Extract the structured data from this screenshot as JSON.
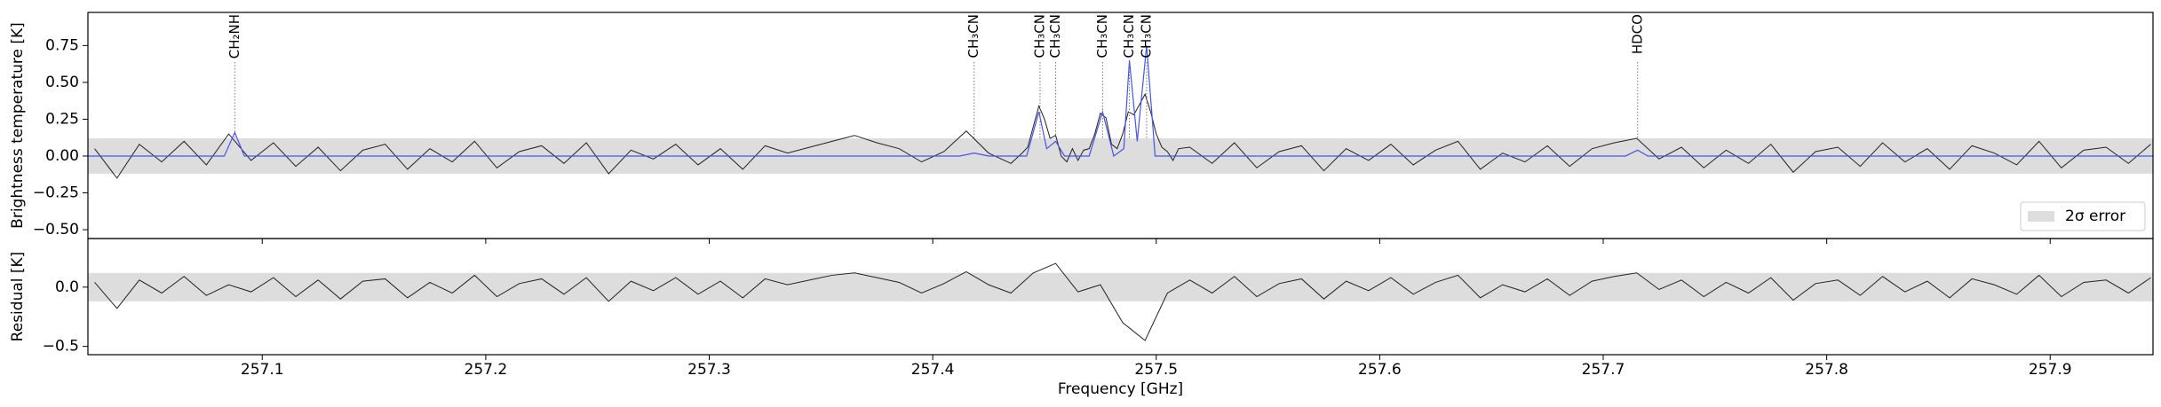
{
  "chart_data": [
    {
      "type": "line",
      "ylabel": "Brightness temperature [K]",
      "xlim": [
        257.022,
        257.946
      ],
      "ylim": [
        -0.56,
        0.975
      ],
      "yticks": [
        {
          "value": -0.5,
          "label": "−0.50"
        },
        {
          "value": -0.25,
          "label": "−0.25"
        },
        {
          "value": 0,
          "label": "0.00"
        },
        {
          "value": 0.25,
          "label": "0.25"
        },
        {
          "value": 0.5,
          "label": "0.50"
        },
        {
          "value": 0.75,
          "label": "0.75"
        }
      ],
      "error_band": {
        "name": "2σ error",
        "lower": -0.12,
        "upper": 0.12,
        "color": "#dddddd"
      },
      "legend": "lower right",
      "series": [
        {
          "color": "#222222",
          "x": [
            257.025,
            257.035,
            257.045,
            257.055,
            257.065,
            257.075,
            257.085,
            257.095,
            257.105,
            257.115,
            257.125,
            257.135,
            257.145,
            257.155,
            257.165,
            257.175,
            257.185,
            257.195,
            257.205,
            257.215,
            257.225,
            257.235,
            257.245,
            257.255,
            257.265,
            257.275,
            257.285,
            257.295,
            257.305,
            257.315,
            257.325,
            257.335,
            257.345,
            257.355,
            257.365,
            257.375,
            257.385,
            257.395,
            257.405,
            257.415,
            257.425,
            257.435,
            257.44,
            257.4425,
            257.445,
            257.4475,
            257.45,
            257.4525,
            257.455,
            257.4575,
            257.46,
            257.4625,
            257.465,
            257.4675,
            257.47,
            257.4725,
            257.475,
            257.4775,
            257.48,
            257.4825,
            257.485,
            257.4875,
            257.49,
            257.4925,
            257.495,
            257.4975,
            257.5,
            257.5025,
            257.505,
            257.5075,
            257.51,
            257.515,
            257.525,
            257.535,
            257.545,
            257.555,
            257.565,
            257.575,
            257.585,
            257.595,
            257.605,
            257.615,
            257.625,
            257.635,
            257.645,
            257.655,
            257.665,
            257.675,
            257.685,
            257.695,
            257.705,
            257.715,
            257.725,
            257.735,
            257.745,
            257.755,
            257.765,
            257.775,
            257.785,
            257.795,
            257.805,
            257.815,
            257.825,
            257.835,
            257.845,
            257.855,
            257.865,
            257.875,
            257.885,
            257.895,
            257.905,
            257.915,
            257.925,
            257.935,
            257.945
          ],
          "values": [
            0.05,
            -0.15,
            0.08,
            -0.04,
            0.1,
            -0.06,
            0.15,
            -0.03,
            0.09,
            -0.07,
            0.06,
            -0.1,
            0.04,
            0.08,
            -0.09,
            0.05,
            -0.04,
            0.1,
            -0.08,
            0.03,
            0.07,
            -0.05,
            0.09,
            -0.12,
            0.04,
            -0.02,
            0.08,
            -0.06,
            0.05,
            -0.09,
            0.07,
            0.02,
            0.06,
            0.1,
            0.14,
            0.09,
            0.05,
            -0.04,
            0.03,
            0.17,
            0.02,
            -0.05,
            0.02,
            0.06,
            0.2,
            0.34,
            0.25,
            0.12,
            0.14,
            0.0,
            -0.04,
            0.05,
            -0.03,
            0.04,
            0.05,
            0.15,
            0.29,
            0.26,
            0.08,
            0.05,
            0.15,
            0.3,
            0.28,
            0.35,
            0.42,
            0.3,
            0.15,
            0.06,
            0.03,
            -0.03,
            0.05,
            0.06,
            -0.05,
            0.09,
            -0.08,
            0.03,
            0.07,
            -0.1,
            0.05,
            -0.03,
            0.08,
            -0.06,
            0.04,
            0.1,
            -0.09,
            0.02,
            -0.04,
            0.07,
            -0.07,
            0.05,
            0.09,
            0.12,
            -0.02,
            0.06,
            -0.08,
            0.04,
            -0.05,
            0.08,
            -0.11,
            0.03,
            0.06,
            -0.07,
            0.09,
            -0.04,
            0.05,
            -0.09,
            0.07,
            0.02,
            -0.06,
            0.1,
            -0.08,
            0.04,
            0.06,
            -0.05,
            0.08
          ]
        },
        {
          "color": "#4455ee",
          "x": [
            257.022,
            257.083,
            257.0877,
            257.092,
            257.412,
            257.4185,
            257.425,
            257.442,
            257.4475,
            257.451,
            257.455,
            257.459,
            257.47,
            257.476,
            257.481,
            257.4855,
            257.488,
            257.4915,
            257.4957,
            257.4995,
            257.71,
            257.7154,
            257.72,
            257.946
          ],
          "values": [
            0,
            0,
            0.16,
            0,
            0,
            0.02,
            0,
            0,
            0.3,
            0.05,
            0.1,
            0,
            0,
            0.3,
            0,
            0.05,
            0.65,
            0.1,
            0.75,
            0,
            0,
            0.04,
            0,
            0
          ]
        }
      ],
      "annotations": [
        {
          "label": "CH₂NH",
          "x": 257.0877
        },
        {
          "label": "CH₃CN",
          "x": 257.4185
        },
        {
          "label": "CH₃CN",
          "x": 257.448
        },
        {
          "label": "CH₃CN",
          "x": 257.455
        },
        {
          "label": "CH₃CN",
          "x": 257.476
        },
        {
          "label": "CH₃CN",
          "x": 257.488
        },
        {
          "label": "CH₃CN",
          "x": 257.4957
        },
        {
          "label": "HDCO",
          "x": 257.7154
        }
      ]
    },
    {
      "type": "line",
      "ylabel": "Residual [K]",
      "xlabel": "Frequency [GHz]",
      "xlim": [
        257.022,
        257.946
      ],
      "xticks": [
        257.1,
        257.2,
        257.3,
        257.4,
        257.5,
        257.6,
        257.7,
        257.8,
        257.9
      ],
      "ylim": [
        -0.57,
        0.41
      ],
      "yticks": [
        {
          "value": -0.5,
          "label": "−0.5"
        },
        {
          "value": 0,
          "label": "0.0"
        }
      ],
      "error_band": {
        "lower": -0.12,
        "upper": 0.12,
        "color": "#dddddd"
      },
      "series": [
        {
          "color": "#222222",
          "x": [
            257.025,
            257.035,
            257.045,
            257.055,
            257.065,
            257.075,
            257.085,
            257.095,
            257.105,
            257.115,
            257.125,
            257.135,
            257.145,
            257.155,
            257.165,
            257.175,
            257.185,
            257.195,
            257.205,
            257.215,
            257.225,
            257.235,
            257.245,
            257.255,
            257.265,
            257.275,
            257.285,
            257.295,
            257.305,
            257.315,
            257.325,
            257.335,
            257.345,
            257.355,
            257.365,
            257.375,
            257.385,
            257.395,
            257.405,
            257.415,
            257.425,
            257.435,
            257.445,
            257.455,
            257.465,
            257.475,
            257.485,
            257.495,
            257.505,
            257.515,
            257.525,
            257.535,
            257.545,
            257.555,
            257.565,
            257.575,
            257.585,
            257.595,
            257.605,
            257.615,
            257.625,
            257.635,
            257.645,
            257.655,
            257.665,
            257.675,
            257.685,
            257.695,
            257.705,
            257.715,
            257.725,
            257.735,
            257.745,
            257.755,
            257.765,
            257.775,
            257.785,
            257.795,
            257.805,
            257.815,
            257.825,
            257.835,
            257.845,
            257.855,
            257.865,
            257.875,
            257.885,
            257.895,
            257.905,
            257.915,
            257.925,
            257.935,
            257.945
          ],
          "values": [
            0.04,
            -0.18,
            0.06,
            -0.05,
            0.09,
            -0.07,
            0.02,
            -0.04,
            0.08,
            -0.08,
            0.06,
            -0.1,
            0.05,
            0.07,
            -0.09,
            0.04,
            -0.05,
            0.1,
            -0.08,
            0.03,
            0.07,
            -0.06,
            0.08,
            -0.12,
            0.05,
            -0.03,
            0.08,
            -0.06,
            0.05,
            -0.09,
            0.07,
            0.02,
            0.06,
            0.1,
            0.12,
            0.08,
            0.04,
            -0.05,
            0.03,
            0.13,
            0.02,
            -0.05,
            0.12,
            0.2,
            -0.04,
            0.02,
            -0.3,
            -0.45,
            -0.05,
            0.06,
            -0.05,
            0.09,
            -0.08,
            0.03,
            0.07,
            -0.1,
            0.05,
            -0.03,
            0.08,
            -0.06,
            0.04,
            0.1,
            -0.09,
            0.02,
            -0.04,
            0.07,
            -0.07,
            0.05,
            0.09,
            0.12,
            -0.02,
            0.06,
            -0.08,
            0.04,
            -0.05,
            0.08,
            -0.11,
            0.03,
            0.06,
            -0.07,
            0.09,
            -0.04,
            0.05,
            -0.09,
            0.07,
            0.02,
            -0.06,
            0.1,
            -0.08,
            0.04,
            0.06,
            -0.05,
            0.08
          ]
        }
      ]
    }
  ]
}
